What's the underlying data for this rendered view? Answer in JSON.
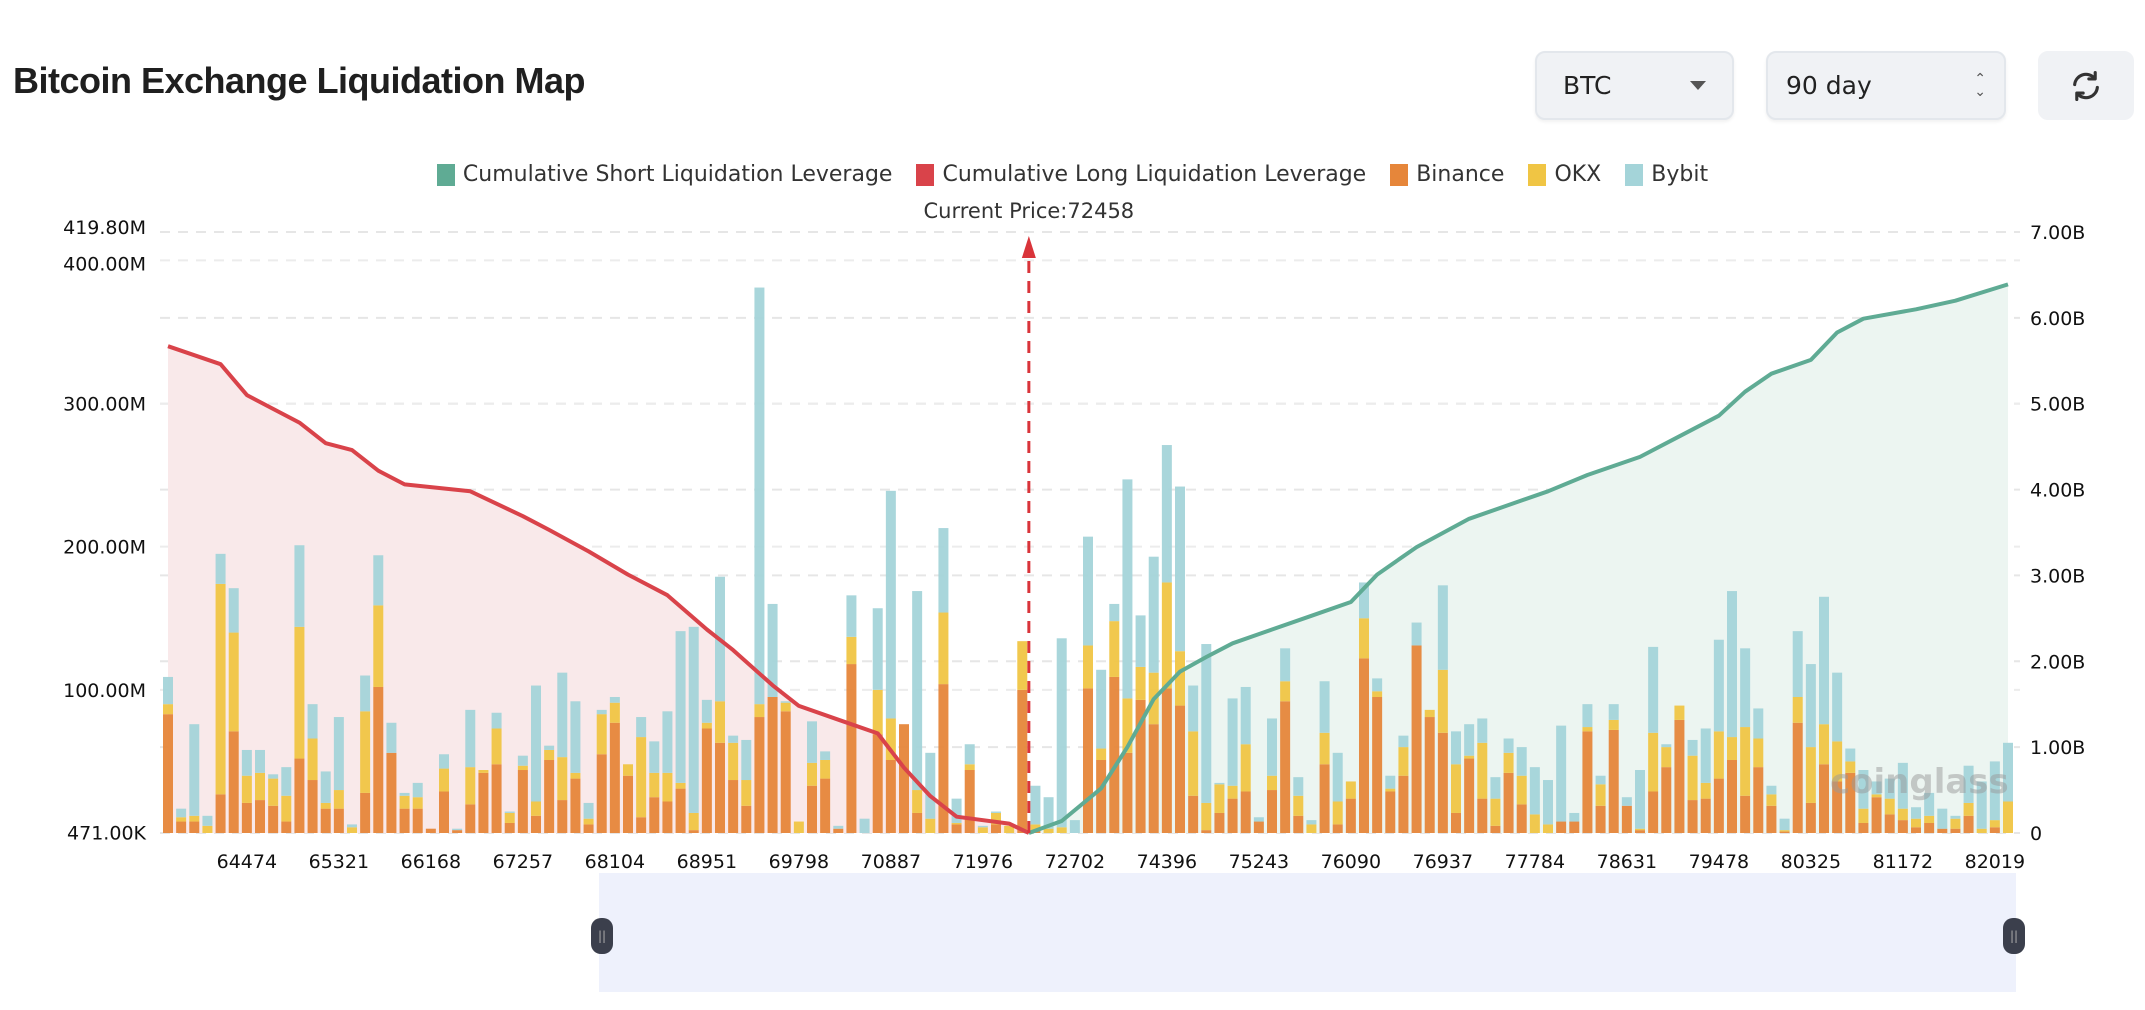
{
  "header": {
    "title": "Bitcoin Exchange Liquidation Map"
  },
  "controls": {
    "coin": "BTC",
    "period": "90 day",
    "refresh_icon": "refresh-icon"
  },
  "legend": [
    {
      "label": "Cumulative Short Liquidation Leverage",
      "color": "#5fab94"
    },
    {
      "label": "Cumulative Long Liquidation Leverage",
      "color": "#d9434a"
    },
    {
      "label": "Binance",
      "color": "#e6863a"
    },
    {
      "label": "OKX",
      "color": "#f0c544"
    },
    {
      "label": "Bybit",
      "color": "#a4d4d9"
    }
  ],
  "watermark": "coinglass",
  "chart_data": {
    "type": "bar+line",
    "current_price_label": "Current Price:72458",
    "current_price_between_bars": [
      66,
      67
    ],
    "left_axis": {
      "ticks": [
        "471.00K",
        "100.00M",
        "200.00M",
        "300.00M",
        "400.00M",
        "419.80M"
      ],
      "values_M": [
        0.471,
        100,
        200,
        300,
        400,
        419.8
      ],
      "range_M": [
        0,
        419.8
      ]
    },
    "right_axis": {
      "ticks": [
        "0",
        "1.00B",
        "2.00B",
        "3.00B",
        "4.00B",
        "5.00B",
        "6.00B",
        "7.00B"
      ],
      "range_B": [
        0,
        7
      ]
    },
    "x_ticks": [
      {
        "bar": 7,
        "label": "64474"
      },
      {
        "bar": 14,
        "label": "65321"
      },
      {
        "bar": 21,
        "label": "66168"
      },
      {
        "bar": 28,
        "label": "67257"
      },
      {
        "bar": 35,
        "label": "68104"
      },
      {
        "bar": 42,
        "label": "68951"
      },
      {
        "bar": 49,
        "label": "69798"
      },
      {
        "bar": 56,
        "label": "70887"
      },
      {
        "bar": 63,
        "label": "71976"
      },
      {
        "bar": 70,
        "label": "72702"
      },
      {
        "bar": 77,
        "label": "74396"
      },
      {
        "bar": 84,
        "label": "75243"
      },
      {
        "bar": 91,
        "label": "76090"
      },
      {
        "bar": 98,
        "label": "76937"
      },
      {
        "bar": 105,
        "label": "77784"
      },
      {
        "bar": 112,
        "label": "78631"
      },
      {
        "bar": 119,
        "label": "79478"
      },
      {
        "bar": 126,
        "label": "80325"
      },
      {
        "bar": 133,
        "label": "81172"
      },
      {
        "bar": 140,
        "label": "82019"
      }
    ],
    "stack_order": [
      "Binance",
      "OKX",
      "Bybit"
    ],
    "bars_M": [
      [
        83,
        7,
        19
      ],
      [
        8,
        3,
        6
      ],
      [
        8,
        4,
        64
      ],
      [
        0,
        5,
        7
      ],
      [
        27,
        147,
        21
      ],
      [
        71,
        69,
        31
      ],
      [
        21,
        19,
        18
      ],
      [
        23,
        19,
        16
      ],
      [
        19,
        19,
        3
      ],
      [
        8,
        18,
        20
      ],
      [
        52,
        92,
        57
      ],
      [
        37,
        29,
        24
      ],
      [
        17,
        4,
        22
      ],
      [
        17,
        13,
        51
      ],
      [
        0,
        4,
        2
      ],
      [
        28,
        57,
        25
      ],
      [
        102,
        57,
        35
      ],
      [
        56,
        0,
        21
      ],
      [
        17,
        9,
        2
      ],
      [
        17,
        8,
        10
      ],
      [
        3,
        0,
        0
      ],
      [
        29,
        16,
        10
      ],
      [
        2,
        0,
        1
      ],
      [
        20,
        26,
        40
      ],
      [
        42,
        2,
        0
      ],
      [
        48,
        25,
        11
      ],
      [
        7,
        7,
        1
      ],
      [
        44,
        3,
        7
      ],
      [
        12,
        10,
        81
      ],
      [
        51,
        7,
        3
      ],
      [
        23,
        30,
        59
      ],
      [
        38,
        4,
        50
      ],
      [
        6,
        4,
        11
      ],
      [
        55,
        28,
        3
      ],
      [
        77,
        14,
        4
      ],
      [
        40,
        8,
        0
      ],
      [
        11,
        56,
        14
      ],
      [
        25,
        17,
        22
      ],
      [
        22,
        20,
        43
      ],
      [
        31,
        4,
        106
      ],
      [
        2,
        12,
        130
      ],
      [
        73,
        4,
        16
      ],
      [
        63,
        29,
        87
      ],
      [
        37,
        26,
        5
      ],
      [
        19,
        18,
        28
      ],
      [
        81,
        9,
        291
      ],
      [
        95,
        0,
        65
      ],
      [
        85,
        6,
        1
      ],
      [
        0,
        8,
        0
      ],
      [
        33,
        16,
        29
      ],
      [
        38,
        13,
        6
      ],
      [
        3,
        0,
        2
      ],
      [
        118,
        19,
        29
      ],
      [
        0,
        0,
        10
      ],
      [
        69,
        31,
        57
      ],
      [
        51,
        29,
        159
      ],
      [
        76,
        0,
        0
      ],
      [
        14,
        16,
        139
      ],
      [
        0,
        10,
        46
      ],
      [
        104,
        50,
        59
      ],
      [
        6,
        1,
        17
      ],
      [
        44,
        4,
        14
      ],
      [
        0,
        4,
        1
      ],
      [
        6,
        8,
        1
      ],
      [
        0,
        5,
        0
      ],
      [
        100,
        34,
        0
      ],
      [
        2,
        4,
        27
      ],
      [
        0,
        3,
        22
      ],
      [
        0,
        4,
        132
      ],
      [
        0,
        0,
        9
      ],
      [
        101,
        30,
        76
      ],
      [
        51,
        8,
        55
      ],
      [
        109,
        39,
        12
      ],
      [
        56,
        38,
        153
      ],
      [
        93,
        23,
        36
      ],
      [
        76,
        36,
        81
      ],
      [
        101,
        74,
        96
      ],
      [
        89,
        38,
        115
      ],
      [
        26,
        45,
        32
      ],
      [
        2,
        19,
        111
      ],
      [
        14,
        20,
        1
      ],
      [
        24,
        9,
        61
      ],
      [
        29,
        33,
        40
      ],
      [
        8,
        0,
        3
      ],
      [
        30,
        10,
        40
      ],
      [
        92,
        14,
        23
      ],
      [
        12,
        14,
        13
      ],
      [
        0,
        6,
        3
      ],
      [
        48,
        22,
        36
      ],
      [
        6,
        16,
        34
      ],
      [
        24,
        12,
        0
      ],
      [
        122,
        28,
        25
      ],
      [
        95,
        4,
        9
      ],
      [
        29,
        2,
        9
      ],
      [
        40,
        20,
        8
      ],
      [
        131,
        0,
        16
      ],
      [
        81,
        5,
        0
      ],
      [
        70,
        44,
        59
      ],
      [
        14,
        34,
        23
      ],
      [
        52,
        2,
        22
      ],
      [
        24,
        39,
        17
      ],
      [
        5,
        19,
        15
      ],
      [
        42,
        14,
        10
      ],
      [
        20,
        20,
        20
      ],
      [
        0,
        13,
        33
      ],
      [
        0,
        6,
        31
      ],
      [
        8,
        0,
        67
      ],
      [
        8,
        0,
        6
      ],
      [
        71,
        3,
        16
      ],
      [
        19,
        15,
        6
      ],
      [
        72,
        7,
        11
      ],
      [
        19,
        0,
        6
      ],
      [
        2,
        1,
        41
      ],
      [
        29,
        41,
        60
      ],
      [
        46,
        14,
        2
      ],
      [
        79,
        10,
        0
      ],
      [
        23,
        31,
        11
      ],
      [
        24,
        11,
        38
      ],
      [
        38,
        33,
        64
      ],
      [
        51,
        16,
        102
      ],
      [
        26,
        48,
        55
      ],
      [
        46,
        20,
        21
      ],
      [
        19,
        8,
        6
      ],
      [
        1,
        1,
        8
      ],
      [
        77,
        18,
        46
      ],
      [
        21,
        39,
        58
      ],
      [
        48,
        28,
        89
      ],
      [
        36,
        28,
        48
      ],
      [
        42,
        8,
        9
      ],
      [
        7,
        10,
        27
      ],
      [
        25,
        2,
        9
      ],
      [
        13,
        11,
        14
      ],
      [
        9,
        8,
        32
      ],
      [
        4,
        6,
        8
      ],
      [
        7,
        5,
        16
      ],
      [
        3,
        0,
        14
      ],
      [
        3,
        7,
        2
      ],
      [
        12,
        9,
        26
      ],
      [
        0,
        3,
        33
      ],
      [
        4,
        5,
        41
      ],
      [
        0,
        22,
        41
      ]
    ],
    "cumulative_long_B": [
      [
        1,
        5.67
      ],
      [
        5,
        5.46
      ],
      [
        7,
        5.1
      ],
      [
        9,
        4.94
      ],
      [
        11,
        4.78
      ],
      [
        13,
        4.54
      ],
      [
        15,
        4.46
      ],
      [
        17,
        4.22
      ],
      [
        19,
        4.06
      ],
      [
        24,
        3.98
      ],
      [
        28,
        3.69
      ],
      [
        30,
        3.53
      ],
      [
        33,
        3.28
      ],
      [
        36,
        3.01
      ],
      [
        39,
        2.77
      ],
      [
        42,
        2.37
      ],
      [
        44,
        2.13
      ],
      [
        47,
        1.72
      ],
      [
        49,
        1.48
      ],
      [
        52,
        1.32
      ],
      [
        55,
        1.16
      ],
      [
        57,
        0.76
      ],
      [
        59,
        0.43
      ],
      [
        61,
        0.19
      ],
      [
        65,
        0.11
      ],
      [
        66.5,
        0
      ]
    ],
    "cumulative_short_B": [
      [
        66.5,
        0
      ],
      [
        69,
        0.14
      ],
      [
        72,
        0.52
      ],
      [
        74,
        1.0
      ],
      [
        76,
        1.56
      ],
      [
        78,
        1.88
      ],
      [
        80,
        2.05
      ],
      [
        82,
        2.21
      ],
      [
        85,
        2.37
      ],
      [
        88,
        2.53
      ],
      [
        91,
        2.69
      ],
      [
        93,
        3.01
      ],
      [
        96,
        3.33
      ],
      [
        100,
        3.66
      ],
      [
        103,
        3.82
      ],
      [
        106,
        3.98
      ],
      [
        109,
        4.17
      ],
      [
        113,
        4.38
      ],
      [
        116,
        4.62
      ],
      [
        119,
        4.86
      ],
      [
        121,
        5.14
      ],
      [
        123,
        5.35
      ],
      [
        126,
        5.51
      ],
      [
        128,
        5.83
      ],
      [
        130,
        5.99
      ],
      [
        134,
        6.1
      ],
      [
        137,
        6.2
      ],
      [
        141,
        6.39
      ]
    ],
    "grid": true,
    "legend_position": "top"
  }
}
